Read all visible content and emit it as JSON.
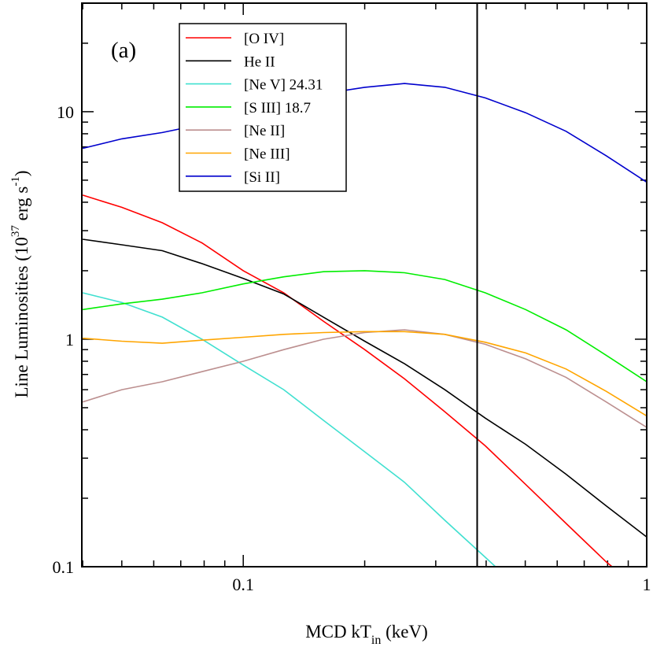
{
  "chart_data": {
    "type": "line",
    "panel_label": "(a)",
    "xlabel": {
      "main": "MCD kT",
      "sub": "in",
      "unit": "  (keV)"
    },
    "ylabel": {
      "main": "Line Luminosities (10",
      "sup1": "37",
      "mid": " erg s",
      "sup2": "-1",
      "end": ")"
    },
    "xscale": "log",
    "yscale": "log",
    "xlim": [
      0.0398,
      1.0
    ],
    "ylim": [
      0.1,
      30
    ],
    "x_tick_labels": [
      {
        "value": 0.1,
        "label": "0.1"
      },
      {
        "value": 1,
        "label": "1"
      }
    ],
    "y_tick_labels": [
      {
        "value": 0.1,
        "label": "0.1"
      },
      {
        "value": 1,
        "label": "1"
      },
      {
        "value": 10,
        "label": "10"
      }
    ],
    "vertical_line_x": 0.38,
    "legend_position": "top-left",
    "series": [
      {
        "name": "[O IV]",
        "color": "#ff0000",
        "x": [
          0.04,
          0.05,
          0.063,
          0.079,
          0.1,
          0.126,
          0.158,
          0.2,
          0.251,
          0.316,
          0.398,
          0.501,
          0.631,
          0.794,
          1.0
        ],
        "y": [
          4.3,
          3.8,
          3.25,
          2.65,
          2.0,
          1.6,
          1.2,
          0.9,
          0.67,
          0.48,
          0.34,
          0.23,
          0.155,
          0.105,
          0.075
        ]
      },
      {
        "name": "He II",
        "color": "#000000",
        "x": [
          0.04,
          0.05,
          0.063,
          0.079,
          0.1,
          0.126,
          0.158,
          0.2,
          0.251,
          0.316,
          0.398,
          0.501,
          0.631,
          0.794,
          1.0
        ],
        "y": [
          2.75,
          2.6,
          2.45,
          2.15,
          1.85,
          1.58,
          1.25,
          0.98,
          0.78,
          0.6,
          0.45,
          0.345,
          0.255,
          0.185,
          0.135
        ]
      },
      {
        "name": "[Ne V] 24.31",
        "color": "#40e0d0",
        "x": [
          0.04,
          0.05,
          0.063,
          0.079,
          0.1,
          0.126,
          0.158,
          0.2,
          0.251,
          0.316,
          0.398,
          0.45
        ],
        "y": [
          1.6,
          1.45,
          1.25,
          1.0,
          0.77,
          0.6,
          0.44,
          0.32,
          0.235,
          0.16,
          0.11,
          0.09
        ]
      },
      {
        "name": "[S III] 18.7",
        "color": "#00ee00",
        "x": [
          0.04,
          0.05,
          0.063,
          0.079,
          0.1,
          0.126,
          0.158,
          0.2,
          0.251,
          0.316,
          0.398,
          0.501,
          0.631,
          0.794,
          1.0
        ],
        "y": [
          1.35,
          1.43,
          1.5,
          1.6,
          1.75,
          1.88,
          1.98,
          2.0,
          1.96,
          1.83,
          1.6,
          1.35,
          1.1,
          0.85,
          0.65
        ]
      },
      {
        "name": "[Ne II]",
        "color": "#bc8f8f",
        "x": [
          0.04,
          0.05,
          0.063,
          0.079,
          0.1,
          0.126,
          0.158,
          0.2,
          0.251,
          0.316,
          0.398,
          0.501,
          0.631,
          0.794,
          1.0
        ],
        "y": [
          0.53,
          0.6,
          0.65,
          0.72,
          0.8,
          0.9,
          1.0,
          1.07,
          1.1,
          1.05,
          0.95,
          0.82,
          0.68,
          0.53,
          0.41
        ]
      },
      {
        "name": "[Ne III]",
        "color": "#ffa500",
        "x": [
          0.04,
          0.05,
          0.063,
          0.079,
          0.1,
          0.126,
          0.158,
          0.2,
          0.251,
          0.316,
          0.398,
          0.501,
          0.631,
          0.794,
          1.0
        ],
        "y": [
          1.01,
          0.98,
          0.96,
          0.99,
          1.02,
          1.05,
          1.07,
          1.08,
          1.08,
          1.05,
          0.97,
          0.87,
          0.74,
          0.59,
          0.46
        ]
      },
      {
        "name": "[Si II]",
        "color": "#0000cd",
        "x": [
          0.04,
          0.05,
          0.063,
          0.079,
          0.1,
          0.126,
          0.158,
          0.2,
          0.251,
          0.316,
          0.398,
          0.501,
          0.631,
          0.794,
          1.0
        ],
        "y": [
          6.9,
          7.6,
          8.1,
          8.8,
          9.7,
          10.8,
          12.0,
          12.8,
          13.3,
          12.8,
          11.5,
          9.9,
          8.2,
          6.4,
          4.9
        ]
      }
    ]
  }
}
